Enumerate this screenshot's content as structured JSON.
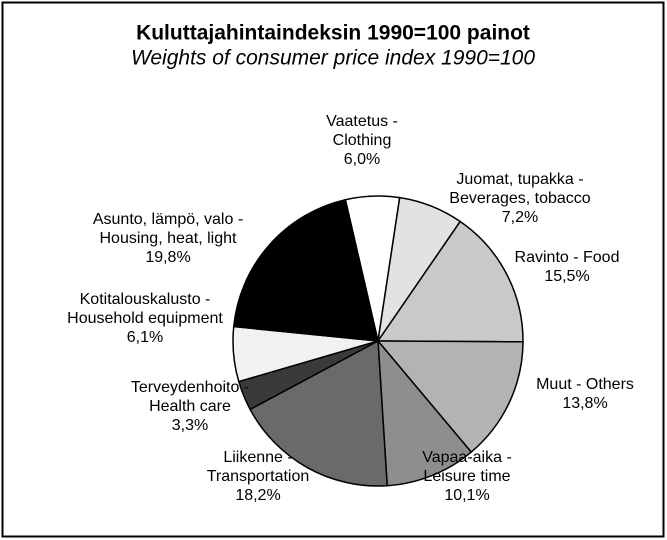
{
  "chart_data": {
    "type": "pie",
    "title": "Kuluttajahintaindeksin 1990=100 painot",
    "subtitle": "Weights of consumer price index 1990=100",
    "categories": [
      [
        "Vaatetus -",
        "Clothing"
      ],
      [
        "Juomat, tupakka -",
        "Beverages, tobacco"
      ],
      [
        "Ravinto - Food"
      ],
      [
        "Muut - Others"
      ],
      [
        "Vapaa-aika -",
        "Leisure time"
      ],
      [
        "Liikenne -",
        "Transportation"
      ],
      [
        "Terveydenhoito -",
        "Health care"
      ],
      [
        "Kotitalouskalusto -",
        "Household equipment"
      ],
      [
        "Asunto, lämpö, valo -",
        "Housing, heat, light"
      ]
    ],
    "values": [
      6.0,
      7.2,
      15.5,
      13.8,
      10.1,
      18.2,
      3.3,
      6.1,
      19.8
    ],
    "value_labels": [
      "6,0%",
      "7,2%",
      "15,5%",
      "13,8%",
      "10,1%",
      "18,2%",
      "3,3%",
      "6,1%",
      "19,8%"
    ],
    "colors": [
      "#ffffff",
      "#e2e2e2",
      "#c9c9c9",
      "#b3b3b3",
      "#8e8e8e",
      "#6a6a6a",
      "#3a3a3a",
      "#f1f1f1",
      "#000000"
    ]
  }
}
